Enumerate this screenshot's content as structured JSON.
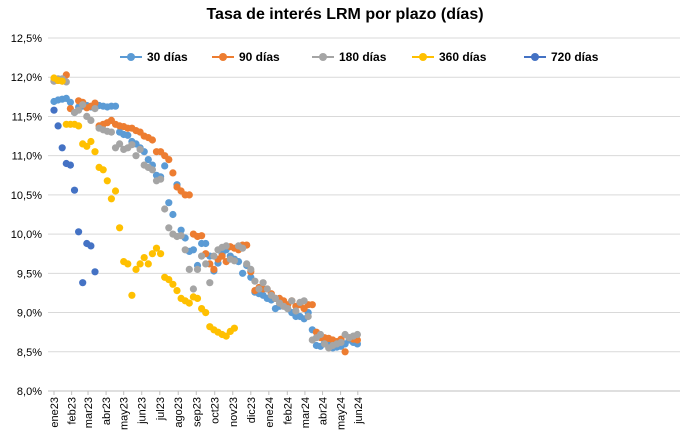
{
  "chart_data": {
    "type": "scatter",
    "title": "Tasa de interés LRM por plazo (días)",
    "xlabel": "",
    "ylabel": "",
    "ylim": [
      8.0,
      12.5
    ],
    "y_ticks": [
      "8,0%",
      "8,5%",
      "9,0%",
      "9,5%",
      "10,0%",
      "10,5%",
      "11,0%",
      "11,5%",
      "12,0%",
      "12,5%"
    ],
    "x_ticks": [
      "ene23",
      "feb23",
      "mar23",
      "abr23",
      "may23",
      "jun23",
      "jul23",
      "ago23",
      "sep23",
      "oct23",
      "nov23",
      "dic23",
      "ene24",
      "feb24",
      "mar24",
      "abr24",
      "may24",
      "jun24"
    ],
    "x_unit": "weeks since ene23",
    "grid": "horizontal",
    "legend_position": "top",
    "series": [
      {
        "name": "30 días",
        "color": "#5B9BD5",
        "points": [
          [
            0,
            11.69
          ],
          [
            1,
            11.71
          ],
          [
            2,
            11.72
          ],
          [
            3,
            11.73
          ],
          [
            4,
            11.68
          ],
          [
            5,
            11.55
          ],
          [
            6,
            11.62
          ],
          [
            7,
            11.63
          ],
          [
            8,
            11.64
          ],
          [
            9,
            11.62
          ],
          [
            10,
            11.63
          ],
          [
            11,
            11.64
          ],
          [
            12,
            11.63
          ],
          [
            13,
            11.62
          ],
          [
            14,
            11.63
          ],
          [
            15,
            11.63
          ],
          [
            16,
            11.3
          ],
          [
            17,
            11.27
          ],
          [
            18,
            11.26
          ],
          [
            19,
            11.18
          ],
          [
            20,
            11.15
          ],
          [
            21,
            11.1
          ],
          [
            22,
            11.05
          ],
          [
            23,
            10.95
          ],
          [
            24,
            10.88
          ],
          [
            25,
            10.75
          ],
          [
            26,
            10.73
          ],
          [
            27,
            10.87
          ],
          [
            28,
            10.4
          ],
          [
            29,
            10.25
          ],
          [
            30,
            10.63
          ],
          [
            31,
            10.05
          ],
          [
            32,
            9.95
          ],
          [
            33,
            9.78
          ],
          [
            34,
            9.8
          ],
          [
            35,
            9.6
          ],
          [
            36,
            9.88
          ],
          [
            37,
            9.88
          ],
          [
            38,
            9.72
          ],
          [
            39,
            9.53
          ],
          [
            40,
            9.63
          ],
          [
            41,
            9.75
          ],
          [
            42,
            9.8
          ],
          [
            43,
            9.72
          ],
          [
            44,
            9.68
          ],
          [
            45,
            9.65
          ],
          [
            46,
            9.5
          ],
          [
            47,
            9.6
          ],
          [
            48,
            9.45
          ],
          [
            49,
            9.26
          ],
          [
            50,
            9.24
          ],
          [
            51,
            9.22
          ],
          [
            52,
            9.18
          ],
          [
            53,
            9.16
          ],
          [
            54,
            9.05
          ],
          [
            55,
            9.08
          ],
          [
            56,
            9.1
          ],
          [
            57,
            9.05
          ],
          [
            58,
            9.0
          ],
          [
            59,
            8.95
          ],
          [
            60,
            8.95
          ],
          [
            61,
            8.92
          ],
          [
            62,
            9.0
          ],
          [
            63,
            8.78
          ],
          [
            64,
            8.58
          ],
          [
            65,
            8.57
          ],
          [
            66,
            8.62
          ],
          [
            67,
            8.6
          ],
          [
            68,
            8.55
          ],
          [
            69,
            8.56
          ],
          [
            70,
            8.57
          ],
          [
            71,
            8.6
          ],
          [
            72,
            8.65
          ],
          [
            73,
            8.62
          ],
          [
            74,
            8.6
          ]
        ]
      },
      {
        "name": "90 días",
        "color": "#ED7D31",
        "points": [
          [
            0,
            11.95
          ],
          [
            1,
            11.96
          ],
          [
            2,
            11.95
          ],
          [
            3,
            12.03
          ],
          [
            4,
            11.6
          ],
          [
            6,
            11.7
          ],
          [
            7,
            11.68
          ],
          [
            8,
            11.61
          ],
          [
            9,
            11.63
          ],
          [
            10,
            11.67
          ],
          [
            11,
            11.38
          ],
          [
            12,
            11.4
          ],
          [
            13,
            11.42
          ],
          [
            14,
            11.45
          ],
          [
            15,
            11.4
          ],
          [
            16,
            11.38
          ],
          [
            17,
            11.37
          ],
          [
            18,
            11.35
          ],
          [
            19,
            11.35
          ],
          [
            20,
            11.32
          ],
          [
            21,
            11.3
          ],
          [
            22,
            11.25
          ],
          [
            23,
            11.23
          ],
          [
            24,
            11.2
          ],
          [
            25,
            11.05
          ],
          [
            26,
            11.05
          ],
          [
            27,
            11.0
          ],
          [
            28,
            10.95
          ],
          [
            29,
            10.78
          ],
          [
            30,
            10.6
          ],
          [
            31,
            10.55
          ],
          [
            32,
            10.5
          ],
          [
            33,
            10.5
          ],
          [
            34,
            10.0
          ],
          [
            35,
            9.97
          ],
          [
            36,
            9.98
          ],
          [
            37,
            9.75
          ],
          [
            38,
            9.62
          ],
          [
            39,
            9.55
          ],
          [
            40,
            9.68
          ],
          [
            41,
            9.72
          ],
          [
            42,
            9.65
          ],
          [
            43,
            9.84
          ],
          [
            44,
            9.82
          ],
          [
            45,
            9.8
          ],
          [
            46,
            9.86
          ],
          [
            47,
            9.86
          ],
          [
            48,
            9.52
          ],
          [
            49,
            9.28
          ],
          [
            50,
            9.32
          ],
          [
            51,
            9.3
          ],
          [
            52,
            9.3
          ],
          [
            53,
            9.24
          ],
          [
            54,
            9.18
          ],
          [
            55,
            9.18
          ],
          [
            56,
            9.15
          ],
          [
            57,
            9.1
          ],
          [
            58,
            9.15
          ],
          [
            59,
            9.08
          ],
          [
            60,
            9.1
          ],
          [
            61,
            9.05
          ],
          [
            62,
            9.1
          ],
          [
            63,
            9.1
          ],
          [
            64,
            8.75
          ],
          [
            65,
            8.68
          ],
          [
            66,
            8.68
          ],
          [
            67,
            8.67
          ],
          [
            68,
            8.65
          ],
          [
            69,
            8.63
          ],
          [
            70,
            8.66
          ],
          [
            71,
            8.5
          ],
          [
            72,
            8.68
          ],
          [
            73,
            8.66
          ],
          [
            74,
            8.65
          ]
        ]
      },
      {
        "name": "180 días",
        "color": "#A5A5A5",
        "points": [
          [
            0,
            11.95
          ],
          [
            1,
            11.98
          ],
          [
            2,
            11.98
          ],
          [
            3,
            11.94
          ],
          [
            5,
            11.55
          ],
          [
            6,
            11.58
          ],
          [
            7,
            11.65
          ],
          [
            8,
            11.5
          ],
          [
            9,
            11.45
          ],
          [
            10,
            11.6
          ],
          [
            11,
            11.35
          ],
          [
            12,
            11.33
          ],
          [
            13,
            11.31
          ],
          [
            14,
            11.3
          ],
          [
            15,
            11.1
          ],
          [
            16,
            11.15
          ],
          [
            17,
            11.08
          ],
          [
            18,
            11.1
          ],
          [
            19,
            11.14
          ],
          [
            20,
            11.0
          ],
          [
            21,
            11.08
          ],
          [
            22,
            10.88
          ],
          [
            23,
            10.85
          ],
          [
            24,
            10.82
          ],
          [
            25,
            10.68
          ],
          [
            26,
            10.7
          ],
          [
            27,
            10.32
          ],
          [
            28,
            10.08
          ],
          [
            29,
            10.0
          ],
          [
            30,
            9.97
          ],
          [
            31,
            9.98
          ],
          [
            32,
            9.8
          ],
          [
            33,
            9.55
          ],
          [
            34,
            9.3
          ],
          [
            35,
            9.55
          ],
          [
            36,
            9.72
          ],
          [
            37,
            9.62
          ],
          [
            38,
            9.38
          ],
          [
            39,
            9.72
          ],
          [
            40,
            9.8
          ],
          [
            41,
            9.83
          ],
          [
            42,
            9.85
          ],
          [
            43,
            9.68
          ],
          [
            44,
            9.66
          ],
          [
            45,
            9.85
          ],
          [
            46,
            9.82
          ],
          [
            47,
            9.62
          ],
          [
            48,
            9.55
          ],
          [
            49,
            9.4
          ],
          [
            50,
            9.3
          ],
          [
            51,
            9.38
          ],
          [
            52,
            9.3
          ],
          [
            53,
            9.22
          ],
          [
            54,
            9.18
          ],
          [
            55,
            9.12
          ],
          [
            56,
            9.08
          ],
          [
            57,
            9.05
          ],
          [
            58,
            9.15
          ],
          [
            59,
            9.02
          ],
          [
            60,
            9.13
          ],
          [
            61,
            9.15
          ],
          [
            62,
            8.95
          ],
          [
            63,
            8.65
          ],
          [
            64,
            8.68
          ],
          [
            65,
            8.72
          ],
          [
            66,
            8.6
          ],
          [
            67,
            8.55
          ],
          [
            68,
            8.58
          ],
          [
            69,
            8.6
          ],
          [
            70,
            8.62
          ],
          [
            71,
            8.72
          ],
          [
            72,
            8.68
          ],
          [
            73,
            8.7
          ],
          [
            74,
            8.72
          ]
        ]
      },
      {
        "name": "360 días",
        "color": "#FFC000",
        "points": [
          [
            0,
            11.99
          ],
          [
            1,
            11.96
          ],
          [
            2,
            11.95
          ],
          [
            3,
            11.4
          ],
          [
            4,
            11.4
          ],
          [
            5,
            11.4
          ],
          [
            6,
            11.38
          ],
          [
            7,
            11.15
          ],
          [
            8,
            11.12
          ],
          [
            9,
            11.18
          ],
          [
            10,
            11.05
          ],
          [
            11,
            10.85
          ],
          [
            12,
            10.82
          ],
          [
            13,
            10.68
          ],
          [
            14,
            10.45
          ],
          [
            15,
            10.55
          ],
          [
            16,
            10.08
          ],
          [
            17,
            9.65
          ],
          [
            18,
            9.62
          ],
          [
            19,
            9.22
          ],
          [
            20,
            9.55
          ],
          [
            21,
            9.62
          ],
          [
            22,
            9.7
          ],
          [
            23,
            9.62
          ],
          [
            24,
            9.75
          ],
          [
            25,
            9.82
          ],
          [
            26,
            9.75
          ],
          [
            27,
            9.45
          ],
          [
            28,
            9.42
          ],
          [
            29,
            9.36
          ],
          [
            30,
            9.28
          ],
          [
            31,
            9.18
          ],
          [
            32,
            9.15
          ],
          [
            33,
            9.12
          ],
          [
            34,
            9.2
          ],
          [
            35,
            9.18
          ],
          [
            36,
            9.05
          ],
          [
            37,
            9.0
          ],
          [
            38,
            8.82
          ],
          [
            39,
            8.78
          ],
          [
            40,
            8.75
          ],
          [
            41,
            8.72
          ],
          [
            42,
            8.7
          ],
          [
            43,
            8.76
          ],
          [
            44,
            8.8
          ]
        ]
      },
      {
        "name": "720 días",
        "color": "#4472C4",
        "points": [
          [
            0,
            11.58
          ],
          [
            1,
            11.38
          ],
          [
            2,
            11.1
          ],
          [
            3,
            10.9
          ],
          [
            4,
            10.88
          ],
          [
            5,
            10.56
          ],
          [
            6,
            10.03
          ],
          [
            7,
            9.38
          ],
          [
            8,
            9.88
          ],
          [
            9,
            9.85
          ],
          [
            10,
            9.52
          ]
        ]
      }
    ]
  }
}
